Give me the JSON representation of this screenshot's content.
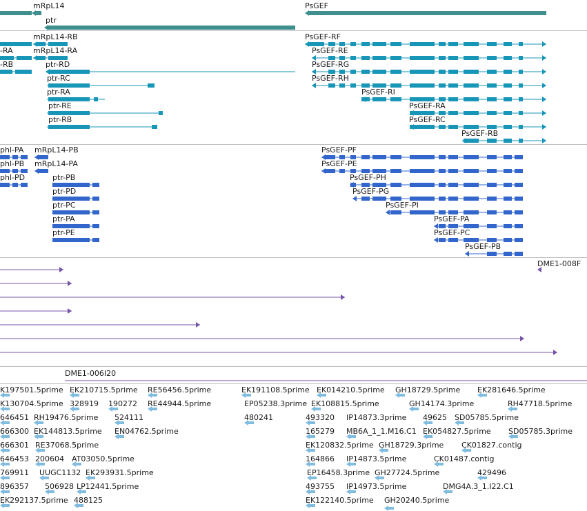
{
  "colors": {
    "gene": "#3f8f8f",
    "transcript": "#1796b8",
    "protein": "#3366cc",
    "cdna": "#7754a8",
    "est": "#80bce0",
    "separator": "#bfbfbf",
    "text": "#1a1a1a"
  },
  "tracks": {
    "genes": {
      "labels": [
        "mRpL14",
        "ptr",
        "PsGEF"
      ]
    },
    "transcripts": {
      "labels": [
        "mRpL14-RB",
        "-RA",
        "mRpL14-RA",
        "-RB",
        "ptr-RD",
        "ptr-RC",
        "ptr-RA",
        "ptr-RE",
        "ptr-RB",
        "PsGEF-RF",
        "PsGEF-RE",
        "PsGEF-RG",
        "PsGEF-RH",
        "PsGEF-RI",
        "PsGEF-RA",
        "PsGEF-RC",
        "PsGEF-RB"
      ]
    },
    "proteins": {
      "labels": [
        "phl-PA",
        "mRpL14-PB",
        "phl-PB",
        "mRpL14-PA",
        "phl-PD",
        "ptr-PB",
        "ptr-PD",
        "ptr-PC",
        "ptr-PA",
        "ptr-PE",
        "PsGEF-PF",
        "PsGEF-PE",
        "PsGEF-PH",
        "PsGEF-PG",
        "PsGEF-PI",
        "PsGEF-PA",
        "PsGEF-PC",
        "PsGEF-PB"
      ]
    },
    "cdna": {
      "labels": [
        "DME1-008F"
      ]
    },
    "clone": {
      "labels": [
        "DME1-006I20"
      ]
    },
    "ests": {
      "labels": [
        "K197501.5prime",
        "EK210715.5prime",
        "RE56456.5prime",
        "EK191108.5prime",
        "EK014210.5prime",
        "GH18729.5prime",
        "EK281646.5prime",
        "K130704.5prime",
        "328919",
        "190272",
        "RE44944.5prime",
        "EP05238.3prime",
        "EK108815.5prime",
        "GH14174.3prime",
        "RH47718.5prime",
        "646451",
        "RH19476.5prime",
        "524111",
        "480241",
        "493320",
        "IP14873.3prime",
        "49625",
        "SD05785.5prime",
        "666300",
        "EK144813.5prime",
        "EN04762.5prime",
        "165279",
        "MB6A_1_1.M16.C1",
        "EK054827.5prime",
        "SD05785.3prime",
        "666301",
        "RE37068.5prime",
        "EK120832.5prime",
        "GH18729.3prime",
        "CK01827.contig",
        "646453",
        "200604",
        "AT03050.5prime",
        "164866",
        "IP14873.5prime",
        "CK01487.contig",
        "769911",
        "UUGC1132",
        "EK293931.5prime",
        "EP16458.3prime",
        "GH27724.5prime",
        "429496",
        "896357",
        "506928",
        "LP12441.5prime",
        "493755",
        "IP14973.5prime",
        "DMG4A.3_1.I22.C1",
        "EK292137.5prime",
        "488125",
        "EK122140.5prime",
        "GH20240.5prime"
      ]
    }
  }
}
